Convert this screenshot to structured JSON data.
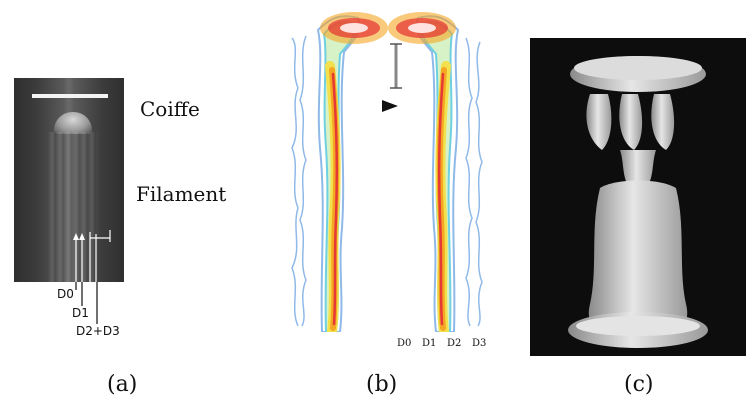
{
  "labels": {
    "coiffe": "Coiffe",
    "filament": "Filament",
    "d0_a": "D0",
    "d1_a": "D1",
    "d2d3_a": "D2+D3",
    "b_d0": "D0",
    "b_d1": "D1",
    "b_d2": "D2",
    "b_d3": "D3",
    "caption_a": "(a)",
    "caption_b": "(b)",
    "caption_c": "(c)"
  },
  "colors": {
    "contour_red": "#e53935",
    "contour_orange": "#f5a623",
    "contour_yellow": "#f2e14c",
    "contour_green": "#8fd14f",
    "contour_cyan": "#6fd0e0",
    "contour_blue": "#8fb9e8"
  }
}
